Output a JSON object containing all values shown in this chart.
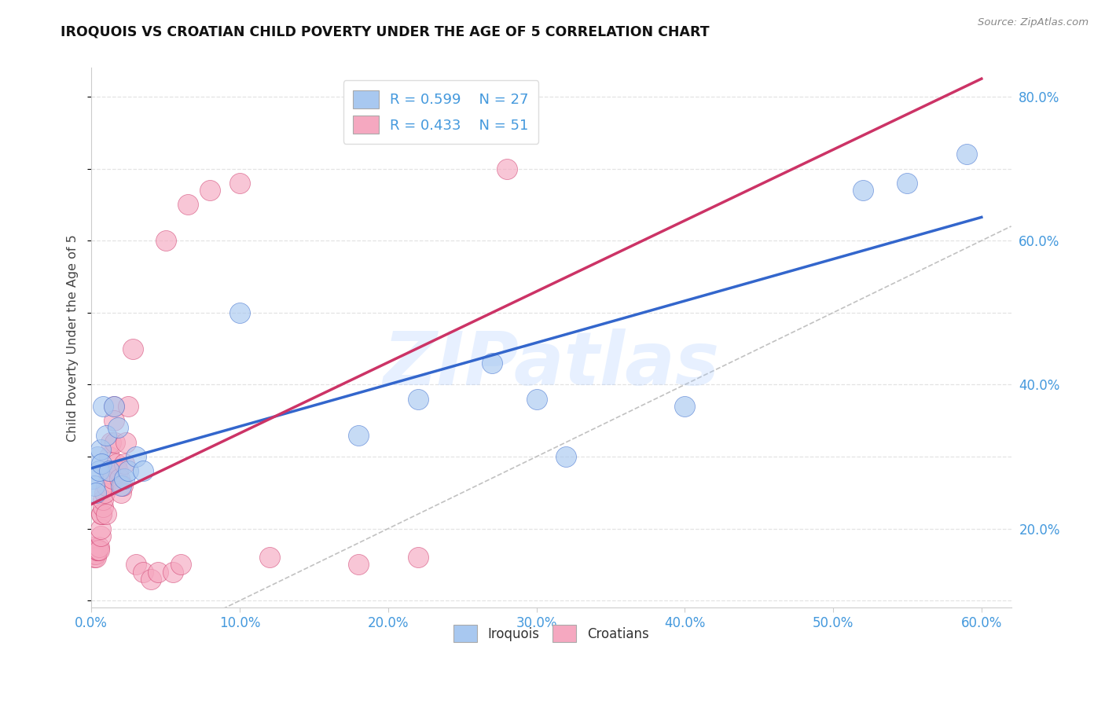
{
  "title": "IROQUOIS VS CROATIAN CHILD POVERTY UNDER THE AGE OF 5 CORRELATION CHART",
  "source": "Source: ZipAtlas.com",
  "ylabel": "Child Poverty Under the Age of 5",
  "xlim": [
    0.0,
    0.62
  ],
  "ylim": [
    0.09,
    0.84
  ],
  "xticks": [
    0.0,
    0.1,
    0.2,
    0.3,
    0.4,
    0.5,
    0.6
  ],
  "yticks_right": [
    0.2,
    0.4,
    0.6,
    0.8
  ],
  "iroquois_color": "#A8C8F0",
  "croatian_color": "#F5A8C0",
  "iroquois_line_color": "#3366CC",
  "croatian_line_color": "#CC3366",
  "iroquois_R": 0.599,
  "iroquois_N": 27,
  "croatian_R": 0.433,
  "croatian_N": 51,
  "legend_label_iroquois": "Iroquois",
  "legend_label_croatians": "Croatians",
  "watermark": "ZIPatlas",
  "background_color": "#FFFFFF",
  "grid_color": "#DDDDDD",
  "iroquois_x": [
    0.001,
    0.002,
    0.003,
    0.004,
    0.005,
    0.006,
    0.007,
    0.008,
    0.01,
    0.012,
    0.015,
    0.018,
    0.02,
    0.022,
    0.025,
    0.03,
    0.035,
    0.1,
    0.18,
    0.22,
    0.27,
    0.3,
    0.32,
    0.4,
    0.52,
    0.55,
    0.59
  ],
  "iroquois_y": [
    0.27,
    0.26,
    0.25,
    0.3,
    0.28,
    0.31,
    0.29,
    0.37,
    0.33,
    0.28,
    0.37,
    0.34,
    0.26,
    0.27,
    0.28,
    0.3,
    0.28,
    0.5,
    0.33,
    0.38,
    0.43,
    0.38,
    0.3,
    0.37,
    0.67,
    0.68,
    0.72
  ],
  "croatian_x": [
    0.001,
    0.001,
    0.001,
    0.002,
    0.002,
    0.003,
    0.003,
    0.003,
    0.004,
    0.004,
    0.005,
    0.005,
    0.006,
    0.006,
    0.007,
    0.007,
    0.008,
    0.008,
    0.009,
    0.01,
    0.01,
    0.011,
    0.012,
    0.013,
    0.014,
    0.015,
    0.015,
    0.016,
    0.017,
    0.018,
    0.019,
    0.02,
    0.021,
    0.022,
    0.023,
    0.025,
    0.028,
    0.03,
    0.035,
    0.04,
    0.045,
    0.05,
    0.055,
    0.06,
    0.065,
    0.08,
    0.1,
    0.12,
    0.18,
    0.22,
    0.28
  ],
  "croatian_y": [
    0.17,
    0.17,
    0.175,
    0.16,
    0.165,
    0.17,
    0.165,
    0.16,
    0.17,
    0.17,
    0.175,
    0.17,
    0.19,
    0.2,
    0.22,
    0.22,
    0.23,
    0.24,
    0.25,
    0.26,
    0.22,
    0.28,
    0.3,
    0.32,
    0.27,
    0.37,
    0.35,
    0.32,
    0.29,
    0.28,
    0.27,
    0.25,
    0.26,
    0.29,
    0.32,
    0.37,
    0.45,
    0.15,
    0.14,
    0.13,
    0.14,
    0.6,
    0.14,
    0.15,
    0.65,
    0.67,
    0.68,
    0.16,
    0.15,
    0.16,
    0.7
  ]
}
